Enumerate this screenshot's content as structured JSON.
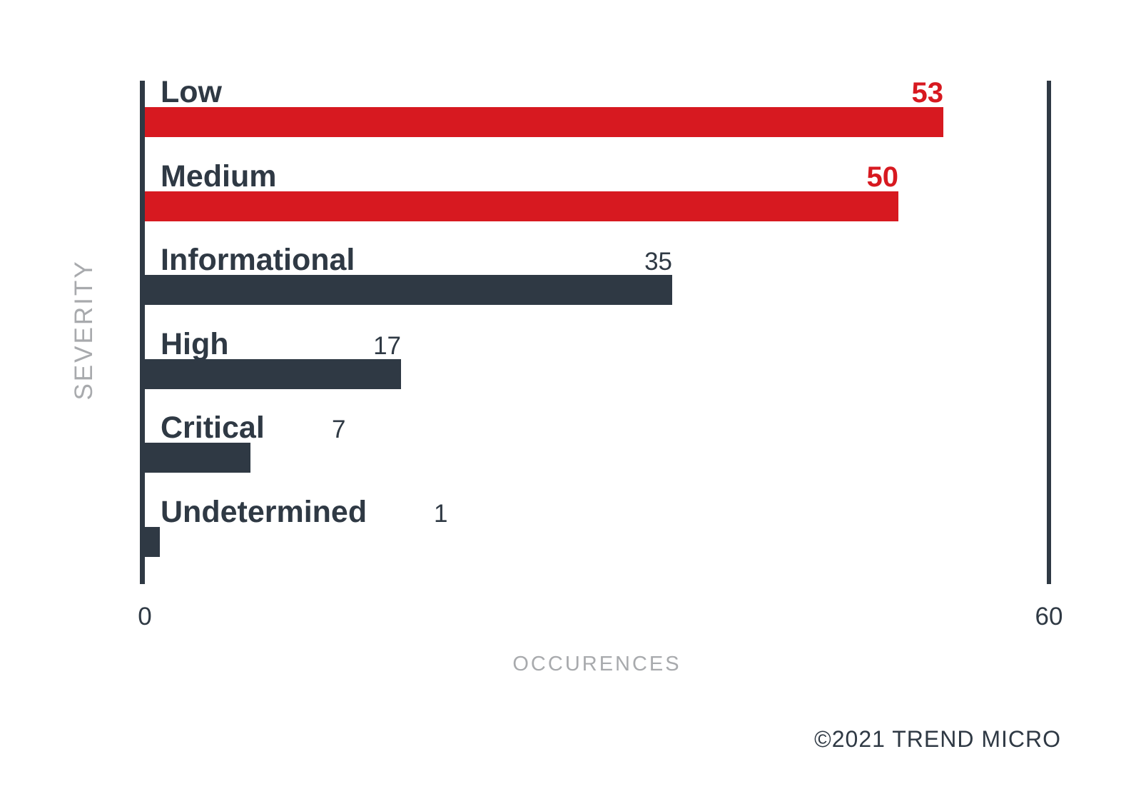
{
  "chart_data": {
    "type": "bar",
    "orientation": "horizontal",
    "categories": [
      "Low",
      "Medium",
      "Informational",
      "High",
      "Critical",
      "Undetermined"
    ],
    "values": [
      53,
      50,
      35,
      17,
      7,
      1
    ],
    "bar_colors": [
      "#d71920",
      "#d71920",
      "#2f3944",
      "#2f3944",
      "#2f3944",
      "#2f3944"
    ],
    "value_label_colors": [
      "#d71920",
      "#d71920",
      "#2f3944",
      "#2f3944",
      "#2f3944",
      "#2f3944"
    ],
    "xlabel": "OCCURENCES",
    "ylabel": "SEVERITY",
    "xlim": [
      0,
      60
    ],
    "x_ticks": [
      "0",
      "60"
    ],
    "grid": false,
    "legend": false,
    "title": ""
  },
  "footer": {
    "copyright": "©2021 TREND MICRO"
  },
  "colors": {
    "red": "#d71920",
    "dark": "#2f3944",
    "gray": "#a8aaad",
    "background": "#ffffff"
  }
}
